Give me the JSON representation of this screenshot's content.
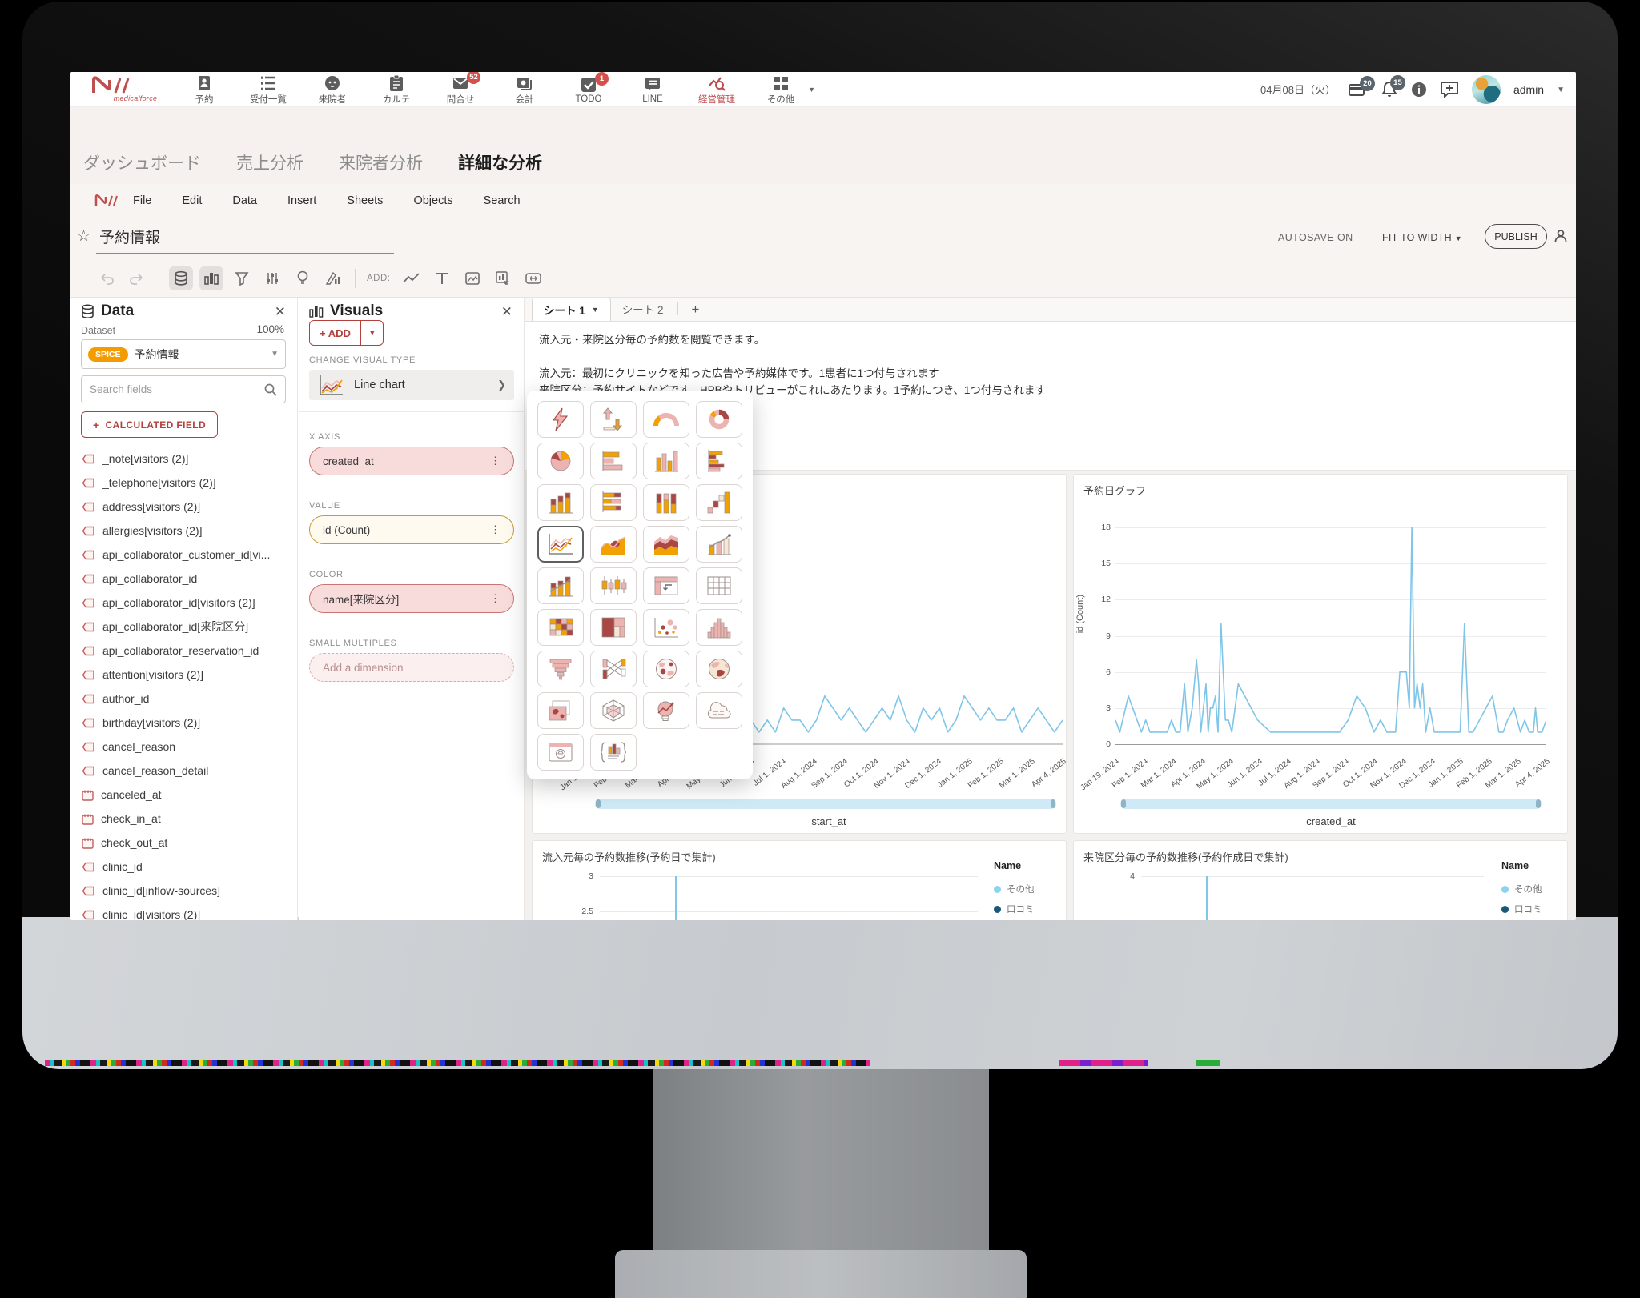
{
  "top_nav": {
    "brand": "medicalforce",
    "items": [
      {
        "label": "予約",
        "icon": "reservation"
      },
      {
        "label": "受付一覧",
        "icon": "reception-list"
      },
      {
        "label": "来院者",
        "icon": "visitor"
      },
      {
        "label": "カルテ",
        "icon": "karte"
      },
      {
        "label": "問合せ",
        "icon": "inquiry",
        "badge": "52"
      },
      {
        "label": "会計",
        "icon": "accounting"
      },
      {
        "label": "TODO",
        "icon": "todo",
        "badge": "1"
      },
      {
        "label": "LINE",
        "icon": "line-chat"
      },
      {
        "label": "経営管理",
        "icon": "management",
        "active": true
      },
      {
        "label": "その他",
        "icon": "others",
        "chevron": true
      }
    ],
    "date": "04月08日（火）",
    "card_badge": "20",
    "bell_badge": "15",
    "user": "admin"
  },
  "sub_nav": {
    "items": [
      {
        "label": "ダッシュボード"
      },
      {
        "label": "売上分析"
      },
      {
        "label": "来院者分析"
      },
      {
        "label": "詳細な分析",
        "active": true
      }
    ]
  },
  "menu_bar": {
    "items": [
      "File",
      "Edit",
      "Data",
      "Insert",
      "Sheets",
      "Objects",
      "Search"
    ]
  },
  "title_bar": {
    "title": "予約情報",
    "autosave": "AUTOSAVE ON",
    "fit_to_width": "FIT TO WIDTH",
    "publish": "PUBLISH"
  },
  "toolbar": {
    "add_label": "ADD:"
  },
  "data_panel": {
    "title": "Data",
    "dataset_label": "Dataset",
    "percent": "100%",
    "spice": "SPICE",
    "dataset_name": "予約情報",
    "search_placeholder": "Search fields",
    "calc_button": "CALCULATED FIELD",
    "fields": [
      {
        "name": "_note[visitors (2)]",
        "type": "dim"
      },
      {
        "name": "_telephone[visitors (2)]",
        "type": "dim"
      },
      {
        "name": "address[visitors (2)]",
        "type": "dim"
      },
      {
        "name": "allergies[visitors (2)]",
        "type": "dim"
      },
      {
        "name": "api_collaborator_customer_id[vi...",
        "type": "dim"
      },
      {
        "name": "api_collaborator_id",
        "type": "dim"
      },
      {
        "name": "api_collaborator_id[visitors (2)]",
        "type": "dim"
      },
      {
        "name": "api_collaborator_id[来院区分]",
        "type": "dim"
      },
      {
        "name": "api_collaborator_reservation_id",
        "type": "dim"
      },
      {
        "name": "attention[visitors (2)]",
        "type": "dim"
      },
      {
        "name": "author_id",
        "type": "dim"
      },
      {
        "name": "birthday[visitors (2)]",
        "type": "dim"
      },
      {
        "name": "cancel_reason",
        "type": "dim"
      },
      {
        "name": "cancel_reason_detail",
        "type": "dim"
      },
      {
        "name": "canceled_at",
        "type": "date"
      },
      {
        "name": "check_in_at",
        "type": "date"
      },
      {
        "name": "check_out_at",
        "type": "date"
      },
      {
        "name": "clinic_id",
        "type": "dim"
      },
      {
        "name": "clinic_id[inflow-sources]",
        "type": "dim"
      },
      {
        "name": "clinic_id[visitors (2)]",
        "type": "dim"
      }
    ]
  },
  "visuals_panel": {
    "title": "Visuals",
    "add_button": "+ ADD",
    "change_label": "CHANGE VISUAL TYPE",
    "current_type": "Line chart",
    "x_axis_label": "X AXIS",
    "x_axis_value": "created_at",
    "value_label": "VALUE",
    "value_value": "id (Count)",
    "color_label": "COLOR",
    "color_value": "name[来院区分]",
    "small_multiples_label": "SMALL MULTIPLES",
    "small_multiples_value": "Add a dimension"
  },
  "visual_type_menu": {
    "selected": "line-chart",
    "icons": [
      "auto-graph",
      "kpi",
      "gauge",
      "donut",
      "pie",
      "bar-horizontal",
      "bar-vertical",
      "bar-horizontal-grouped",
      "bar-vertical-stacked",
      "bar-horizontal-stacked",
      "bar-vertical-100",
      "waterfall",
      "line-chart",
      "area",
      "area-stacked",
      "combo-bar-line",
      "combo-stacked",
      "box-plot",
      "pivot-table",
      "table",
      "heatmap",
      "treemap",
      "scatter",
      "histogram",
      "funnel",
      "sankey",
      "geo-map",
      "globe-map",
      "image-map",
      "radar",
      "insight",
      "word-cloud",
      "custom-visual",
      "narrative"
    ]
  },
  "sheet_tabs": {
    "tabs": [
      "シート 1",
      "シート 2"
    ],
    "active": 0
  },
  "description": {
    "lines": [
      "流入元・来院区分毎の予約数を閲覧できます。",
      "流入元：最初にクリニックを知った広告や予約媒体です。1患者に1つ付与されます",
      "来院区分：予約サイトなどです。HPBやトリビューがこれにあたります。1予約につき、1つ付与されます"
    ]
  },
  "chart_data": [
    {
      "id": "start-at-chart",
      "type": "line",
      "title": "",
      "xlabel": "start_at",
      "color": "#7EC5E8",
      "ylim": [
        0,
        18
      ],
      "x_ticks": [
        "Jan 19, 2024",
        "Feb 1, 2024",
        "Mar 1, 2024",
        "Apr 1, 2024",
        "May 1, 2024",
        "Jun 1, 2024",
        "Jul 1, 2024",
        "Aug 1, 2024",
        "Sep 1, 2024",
        "Oct 1, 2024",
        "Nov 1, 2024",
        "Dec 1, 2024",
        "Jan 1, 2025",
        "Feb 1, 2025",
        "Mar 1, 2025",
        "Apr 4, 2025"
      ],
      "values": [
        2,
        1,
        2,
        1,
        1,
        2,
        3,
        2,
        1,
        2,
        2,
        1,
        3,
        2,
        1,
        1,
        2,
        3,
        4,
        2,
        1,
        2,
        1,
        3,
        2,
        2,
        1,
        2,
        4,
        3,
        2,
        3,
        2,
        1,
        2,
        3,
        2,
        4,
        2,
        1,
        3,
        2,
        3,
        1,
        2,
        4,
        3,
        2,
        3,
        2,
        2,
        3,
        1,
        2,
        3,
        2,
        1,
        2
      ]
    },
    {
      "id": "created-at-chart",
      "type": "line",
      "title": "予約日グラフ",
      "ylabel": "id (Count)",
      "xlabel": "created_at",
      "color": "#7EC5E8",
      "ylim": [
        0,
        18
      ],
      "yticks": [
        0,
        3,
        6,
        9,
        12,
        15,
        18
      ],
      "x_ticks": [
        "Jan 19, 2024",
        "Feb 1, 2024",
        "Mar 1, 2024",
        "Apr 1, 2024",
        "May 1, 2024",
        "Jun 1, 2024",
        "Jul 1, 2024",
        "Aug 1, 2024",
        "Sep 1, 2024",
        "Oct 1, 2024",
        "Nov 1, 2024",
        "Dec 1, 2024",
        "Jan 1, 2025",
        "Feb 1, 2025",
        "Mar 1, 2025",
        "Apr 4, 2025"
      ],
      "points": [
        [
          0,
          2
        ],
        [
          0.01,
          1
        ],
        [
          0.03,
          4
        ],
        [
          0.05,
          2
        ],
        [
          0.06,
          1
        ],
        [
          0.07,
          2
        ],
        [
          0.08,
          1
        ],
        [
          0.1,
          1
        ],
        [
          0.12,
          1
        ],
        [
          0.13,
          2
        ],
        [
          0.14,
          1
        ],
        [
          0.15,
          1
        ],
        [
          0.16,
          5
        ],
        [
          0.168,
          1
        ],
        [
          0.178,
          3
        ],
        [
          0.188,
          7
        ],
        [
          0.193,
          5
        ],
        [
          0.198,
          1
        ],
        [
          0.21,
          5
        ],
        [
          0.215,
          1
        ],
        [
          0.22,
          3
        ],
        [
          0.226,
          3
        ],
        [
          0.232,
          4
        ],
        [
          0.238,
          1
        ],
        [
          0.245,
          10
        ],
        [
          0.255,
          2
        ],
        [
          0.262,
          2
        ],
        [
          0.27,
          1
        ],
        [
          0.285,
          5
        ],
        [
          0.3,
          4
        ],
        [
          0.33,
          2
        ],
        [
          0.36,
          1
        ],
        [
          0.4,
          1
        ],
        [
          0.44,
          1
        ],
        [
          0.48,
          1
        ],
        [
          0.52,
          1
        ],
        [
          0.54,
          2
        ],
        [
          0.56,
          4
        ],
        [
          0.58,
          3
        ],
        [
          0.6,
          1
        ],
        [
          0.615,
          2
        ],
        [
          0.63,
          1
        ],
        [
          0.65,
          1
        ],
        [
          0.66,
          6
        ],
        [
          0.675,
          6
        ],
        [
          0.682,
          3
        ],
        [
          0.688,
          18
        ],
        [
          0.694,
          3
        ],
        [
          0.7,
          5
        ],
        [
          0.707,
          3
        ],
        [
          0.713,
          5
        ],
        [
          0.72,
          1
        ],
        [
          0.73,
          3
        ],
        [
          0.74,
          1
        ],
        [
          0.76,
          1
        ],
        [
          0.78,
          1
        ],
        [
          0.8,
          1
        ],
        [
          0.81,
          10
        ],
        [
          0.82,
          1
        ],
        [
          0.83,
          1
        ],
        [
          0.845,
          2
        ],
        [
          0.86,
          3
        ],
        [
          0.875,
          4
        ],
        [
          0.89,
          1
        ],
        [
          0.9,
          1
        ],
        [
          0.91,
          2
        ],
        [
          0.925,
          3
        ],
        [
          0.94,
          1
        ],
        [
          0.95,
          2
        ],
        [
          0.96,
          1
        ],
        [
          0.97,
          1
        ],
        [
          0.975,
          3
        ],
        [
          0.98,
          1
        ],
        [
          0.99,
          1
        ],
        [
          1,
          2
        ]
      ]
    },
    {
      "id": "inflow-trend",
      "type": "line",
      "title": "流入元毎の予約数推移(予約日で集計)",
      "visible_yticks": [
        "3",
        "2.5"
      ],
      "legend_title": "Name",
      "legend_items": [
        {
          "label": "その他",
          "color": "#8FD2EE"
        },
        {
          "label": "口コミ",
          "color": "#1A5876"
        }
      ],
      "spike_x": 0.2,
      "spike_top_value": 3
    },
    {
      "id": "category-trend",
      "type": "line",
      "title": "来院区分毎の予約数推移(予約作成日で集計)",
      "visible_yticks": [
        "4"
      ],
      "legend_title": "Name",
      "legend_items": [
        {
          "label": "その他",
          "color": "#8FD2EE"
        },
        {
          "label": "口コミ",
          "color": "#1A5876"
        }
      ],
      "spike_x": 0.19,
      "spike_top_value": 4
    }
  ],
  "colors": {
    "accent_red": "#bf4b4b",
    "badge_red": "#d4504c",
    "spice_orange": "#f49b00",
    "line_blue": "#7EC5E8"
  }
}
